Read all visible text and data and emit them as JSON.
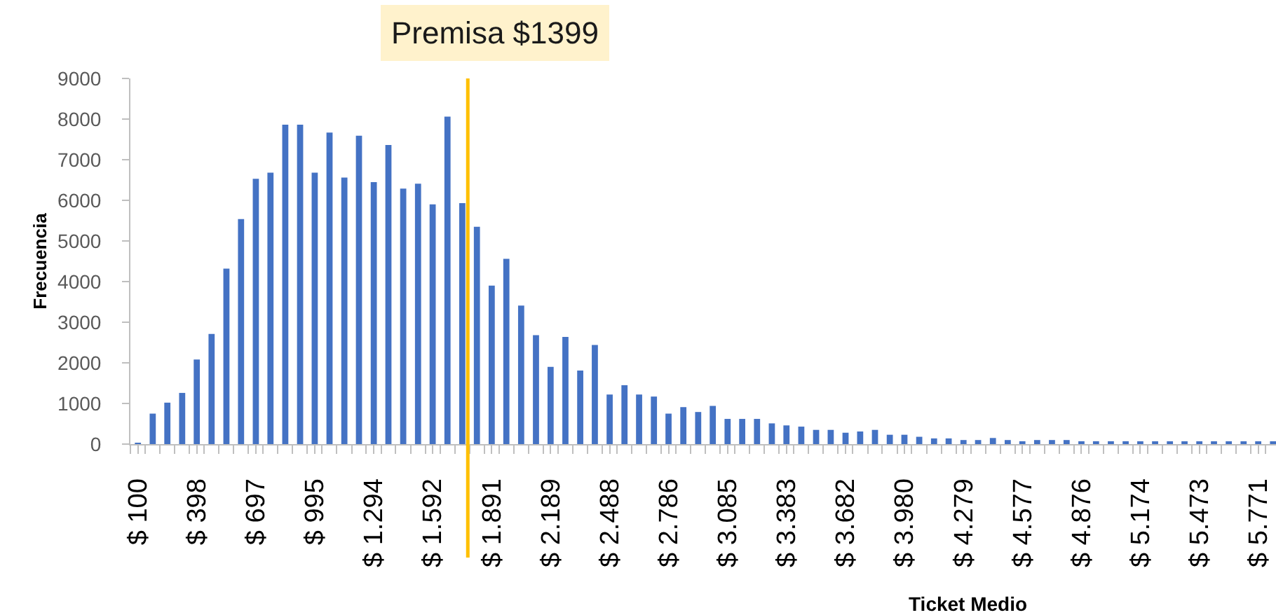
{
  "chart_data": {
    "type": "bar",
    "xlabel": "Ticket Medio",
    "ylabel": "Frecuencia",
    "color": "#4472c4",
    "x": [
      100,
      175,
      249,
      324,
      398,
      473,
      548,
      622,
      697,
      771,
      846,
      921,
      995,
      1070,
      1145,
      1219,
      1294,
      1368,
      1443,
      1518,
      1592,
      1667,
      1742,
      1816,
      1891,
      1965,
      2040,
      2115,
      2189,
      2264,
      2339,
      2413,
      2488,
      2563,
      2637,
      2712,
      2786,
      2861,
      2936,
      3010,
      3085,
      3159,
      3234,
      3309,
      3383,
      3458,
      3533,
      3607,
      3682,
      3756,
      3831,
      3906,
      3980,
      4055,
      4130,
      4204,
      4279,
      4353,
      4428,
      4503,
      4577,
      4652,
      4727,
      4801,
      4876,
      4950,
      5025,
      5100,
      5174,
      5249,
      5324,
      5398,
      5473,
      5547,
      5622,
      5697,
      5771,
      5846
    ],
    "values": [
      30,
      750,
      1020,
      1260,
      2080,
      2710,
      4320,
      5540,
      6530,
      6680,
      7860,
      7860,
      6680,
      7670,
      6560,
      7590,
      6450,
      7360,
      6290,
      6410,
      5900,
      8060,
      5930,
      5350,
      3900,
      4560,
      3410,
      2680,
      1900,
      2640,
      1810,
      2440,
      1220,
      1450,
      1220,
      1170,
      750,
      910,
      790,
      940,
      620,
      620,
      620,
      510,
      460,
      430,
      350,
      350,
      280,
      310,
      350,
      230,
      230,
      180,
      140,
      140,
      100,
      100,
      150,
      100,
      70,
      100,
      100,
      100,
      70,
      70,
      70,
      70,
      40,
      40,
      40,
      60,
      40,
      40,
      40,
      40,
      40,
      40
    ],
    "xlim": [
      62,
      5861
    ],
    "xticks": [
      {
        "value": 62,
        "label": null
      },
      {
        "value": 100,
        "label": "$ 100"
      },
      {
        "value": 137,
        "label": null
      },
      {
        "value": 212,
        "label": null
      },
      {
        "value": 286,
        "label": null
      },
      {
        "value": 361,
        "label": null
      },
      {
        "value": 398,
        "label": "$ 398"
      },
      {
        "value": 435,
        "label": null
      },
      {
        "value": 510,
        "label": null
      },
      {
        "value": 585,
        "label": null
      },
      {
        "value": 659,
        "label": null
      },
      {
        "value": 697,
        "label": "$ 697"
      },
      {
        "value": 734,
        "label": null
      },
      {
        "value": 808,
        "label": null
      },
      {
        "value": 883,
        "label": null
      },
      {
        "value": 958,
        "label": null
      },
      {
        "value": 995,
        "label": "$ 995"
      },
      {
        "value": 1032,
        "label": null
      },
      {
        "value": 1107,
        "label": null
      },
      {
        "value": 1182,
        "label": null
      },
      {
        "value": 1256,
        "label": null
      },
      {
        "value": 1294,
        "label": "$ 1.294"
      },
      {
        "value": 1331,
        "label": null
      },
      {
        "value": 1405,
        "label": null
      },
      {
        "value": 1480,
        "label": null
      },
      {
        "value": 1555,
        "label": null
      },
      {
        "value": 1592,
        "label": "$ 1.592"
      },
      {
        "value": 1629,
        "label": null
      },
      {
        "value": 1704,
        "label": null
      },
      {
        "value": 1779,
        "label": null
      },
      {
        "value": 1853,
        "label": null
      },
      {
        "value": 1891,
        "label": "$ 1.891"
      },
      {
        "value": 1928,
        "label": null
      },
      {
        "value": 2003,
        "label": null
      },
      {
        "value": 2077,
        "label": null
      },
      {
        "value": 2152,
        "label": null
      },
      {
        "value": 2189,
        "label": "$ 2.189"
      },
      {
        "value": 2226,
        "label": null
      },
      {
        "value": 2301,
        "label": null
      },
      {
        "value": 2376,
        "label": null
      },
      {
        "value": 2450,
        "label": null
      },
      {
        "value": 2488,
        "label": "$ 2.488"
      },
      {
        "value": 2525,
        "label": null
      },
      {
        "value": 2600,
        "label": null
      },
      {
        "value": 2674,
        "label": null
      },
      {
        "value": 2749,
        "label": null
      },
      {
        "value": 2786,
        "label": "$ 2.786"
      },
      {
        "value": 2824,
        "label": null
      },
      {
        "value": 2898,
        "label": null
      },
      {
        "value": 2973,
        "label": null
      },
      {
        "value": 3047,
        "label": null
      },
      {
        "value": 3085,
        "label": "$ 3.085"
      },
      {
        "value": 3122,
        "label": null
      },
      {
        "value": 3197,
        "label": null
      },
      {
        "value": 3271,
        "label": null
      },
      {
        "value": 3346,
        "label": null
      },
      {
        "value": 3383,
        "label": "$ 3.383"
      },
      {
        "value": 3420,
        "label": null
      },
      {
        "value": 3495,
        "label": null
      },
      {
        "value": 3570,
        "label": null
      },
      {
        "value": 3644,
        "label": null
      },
      {
        "value": 3682,
        "label": "$ 3.682"
      },
      {
        "value": 3719,
        "label": null
      },
      {
        "value": 3794,
        "label": null
      },
      {
        "value": 3868,
        "label": null
      },
      {
        "value": 3943,
        "label": null
      },
      {
        "value": 3980,
        "label": "$ 3.980"
      },
      {
        "value": 4017,
        "label": null
      },
      {
        "value": 4092,
        "label": null
      },
      {
        "value": 4167,
        "label": null
      },
      {
        "value": 4241,
        "label": null
      },
      {
        "value": 4279,
        "label": "$ 4.279"
      },
      {
        "value": 4316,
        "label": null
      },
      {
        "value": 4391,
        "label": null
      },
      {
        "value": 4465,
        "label": null
      },
      {
        "value": 4540,
        "label": null
      },
      {
        "value": 4577,
        "label": "$ 4.577"
      },
      {
        "value": 4614,
        "label": null
      },
      {
        "value": 4689,
        "label": null
      },
      {
        "value": 4764,
        "label": null
      },
      {
        "value": 4838,
        "label": null
      },
      {
        "value": 4876,
        "label": "$ 4.876"
      },
      {
        "value": 4913,
        "label": null
      },
      {
        "value": 4988,
        "label": null
      },
      {
        "value": 5062,
        "label": null
      },
      {
        "value": 5137,
        "label": null
      },
      {
        "value": 5174,
        "label": "$ 5.174"
      },
      {
        "value": 5211,
        "label": null
      },
      {
        "value": 5286,
        "label": null
      },
      {
        "value": 5361,
        "label": null
      },
      {
        "value": 5435,
        "label": null
      },
      {
        "value": 5473,
        "label": "$ 5.473"
      },
      {
        "value": 5510,
        "label": null
      },
      {
        "value": 5585,
        "label": null
      },
      {
        "value": 5659,
        "label": null
      },
      {
        "value": 5734,
        "label": null
      },
      {
        "value": 5771,
        "label": "$ 5.771"
      },
      {
        "value": 5808,
        "label": null
      }
    ],
    "ylim": [
      0,
      9000
    ],
    "yticks": [
      0,
      1000,
      2000,
      3000,
      4000,
      5000,
      6000,
      7000,
      8000,
      9000
    ],
    "ref_lines": [
      {
        "axis": "x",
        "value": 1770,
        "label": "Premisa $1399",
        "color": "#ffc000"
      }
    ]
  }
}
